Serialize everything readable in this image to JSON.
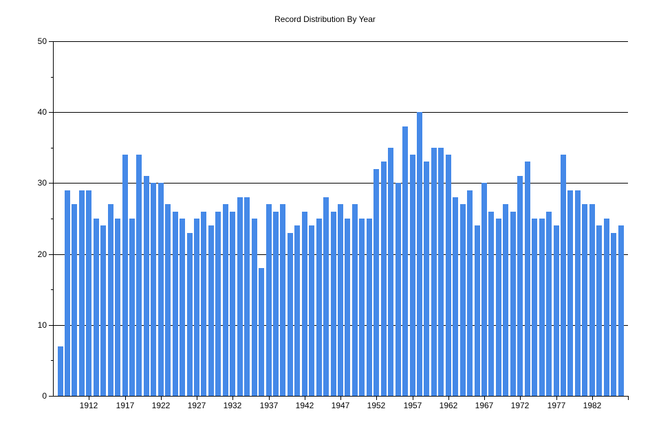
{
  "title": "Record Distribution By Year",
  "colors": {
    "bar": "#4589E8",
    "axis": "#000000",
    "grid": "#000000",
    "background": "#FFFFFF",
    "text": "#000000"
  },
  "chart_data": {
    "type": "bar",
    "title": "Record Distribution By Year",
    "xlabel": "",
    "ylabel": "",
    "ylim": [
      0,
      50
    ],
    "y_major_ticks": [
      0,
      10,
      20,
      30,
      40,
      50
    ],
    "y_minor_tick_step": 5,
    "x_axis_range": [
      1907,
      1987
    ],
    "x_labeled_ticks": [
      1912,
      1917,
      1922,
      1927,
      1932,
      1937,
      1942,
      1947,
      1952,
      1957,
      1962,
      1967,
      1972,
      1977,
      1982
    ],
    "x_unlabeled_ticks": [
      1987
    ],
    "grid": true,
    "legend": "none",
    "categories": [
      1908,
      1909,
      1910,
      1911,
      1912,
      1913,
      1914,
      1915,
      1916,
      1917,
      1918,
      1919,
      1920,
      1921,
      1922,
      1923,
      1924,
      1925,
      1926,
      1927,
      1928,
      1929,
      1930,
      1931,
      1932,
      1933,
      1934,
      1935,
      1936,
      1937,
      1938,
      1939,
      1940,
      1941,
      1942,
      1943,
      1944,
      1945,
      1946,
      1947,
      1948,
      1949,
      1950,
      1951,
      1952,
      1953,
      1954,
      1955,
      1956,
      1957,
      1958,
      1959,
      1960,
      1961,
      1962,
      1963,
      1964,
      1965,
      1966,
      1967,
      1968,
      1969,
      1970,
      1971,
      1972,
      1973,
      1974,
      1975,
      1976,
      1977,
      1978,
      1979,
      1980,
      1981,
      1982,
      1983,
      1984,
      1985,
      1986
    ],
    "values": [
      7,
      29,
      27,
      29,
      29,
      25,
      24,
      27,
      25,
      34,
      25,
      34,
      31,
      30,
      30,
      27,
      26,
      25,
      23,
      25,
      26,
      24,
      26,
      27,
      26,
      28,
      28,
      25,
      18,
      27,
      26,
      27,
      23,
      24,
      26,
      24,
      25,
      28,
      26,
      27,
      25,
      27,
      25,
      25,
      32,
      33,
      35,
      30,
      38,
      34,
      40,
      33,
      35,
      35,
      34,
      28,
      27,
      29,
      24,
      30,
      26,
      25,
      27,
      26,
      31,
      33,
      25,
      25,
      26,
      24,
      34,
      29,
      29,
      27,
      27,
      24,
      25,
      23,
      24
    ]
  }
}
